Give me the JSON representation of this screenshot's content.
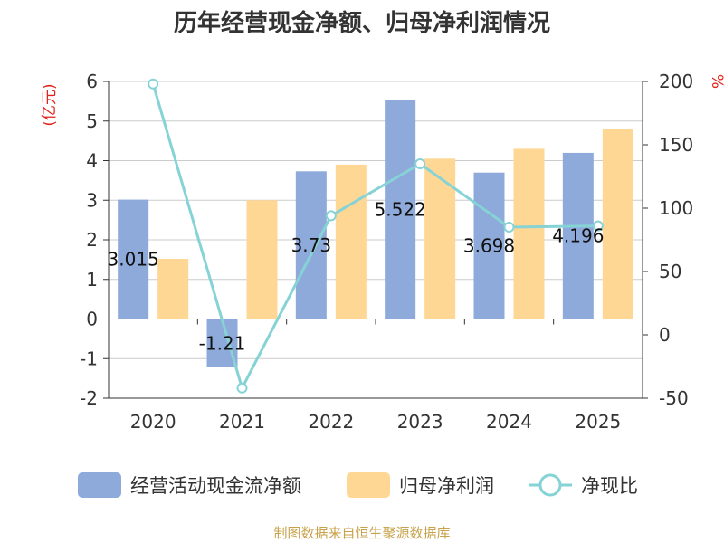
{
  "title": "历年经营现金净额、归母净利润情况",
  "source": "制图数据来自恒生聚源数据库",
  "colors": {
    "bar1": "#8eaadb",
    "bar2": "#ffd794",
    "line": "#86d3d6",
    "axis": "#333333",
    "grid": "#cccccc",
    "unit": "#e2231a",
    "source": "#c8a24a"
  },
  "chart_data": {
    "type": "bar",
    "title": "历年经营现金净额、归母净利润情况",
    "categories": [
      "2020",
      "2021",
      "2022",
      "2023",
      "2024",
      "2025"
    ],
    "y_left": {
      "unit": "(亿元)",
      "min": -2,
      "max": 6,
      "ticks": [
        "-2",
        "-1",
        "0",
        "1",
        "2",
        "3",
        "4",
        "5",
        "6"
      ]
    },
    "y_right": {
      "unit": "%",
      "min": -50,
      "max": 200,
      "ticks": [
        "-50",
        "0",
        "50",
        "100",
        "150",
        "200"
      ]
    },
    "grid": true,
    "legend_position": "bottom",
    "series": [
      {
        "name": "经营活动现金流净额",
        "type": "bar",
        "axis": "left",
        "values": [
          3.015,
          -1.21,
          3.73,
          5.522,
          3.698,
          4.196
        ],
        "labels": [
          "3.015",
          "-1.21",
          "3.73",
          "5.522",
          "3.698",
          "4.196"
        ]
      },
      {
        "name": "归母净利润",
        "type": "bar",
        "axis": "left",
        "values": [
          1.52,
          3.0,
          3.9,
          4.05,
          4.3,
          4.8
        ]
      },
      {
        "name": "净现比",
        "type": "line",
        "axis": "right",
        "values": [
          198,
          -42,
          94,
          135,
          85,
          86
        ]
      }
    ]
  }
}
